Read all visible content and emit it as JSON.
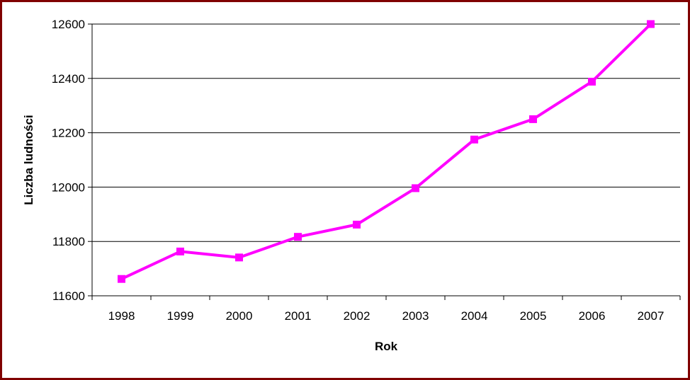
{
  "chart_data": {
    "type": "line",
    "title": "",
    "xlabel": "Rok",
    "ylabel": "Liczba ludności",
    "categories": [
      "1998",
      "1999",
      "2000",
      "2001",
      "2002",
      "2003",
      "2004",
      "2005",
      "2006",
      "2007"
    ],
    "series": [
      {
        "values": [
          11662,
          11763,
          11741,
          11817,
          11862,
          11996,
          12175,
          12250,
          12388,
          12600
        ],
        "color": "#ff00ff",
        "marker": "square"
      }
    ],
    "ylim": [
      11600,
      12600
    ],
    "yticks": [
      "11600",
      "11800",
      "12000",
      "12200",
      "12400",
      "12600"
    ],
    "grid": true,
    "legend": "none"
  },
  "colors": {
    "frame_border": "#800000",
    "gridline": "#000000",
    "series": "#ff00ff"
  }
}
